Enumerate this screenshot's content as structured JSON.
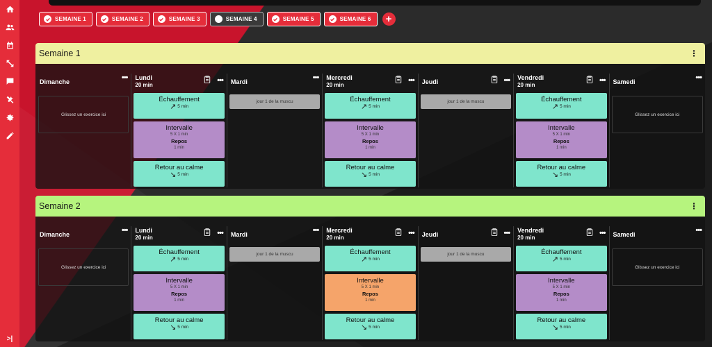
{
  "sidebar": {
    "items": [
      "home-icon",
      "people-icon",
      "calendar-icon",
      "swap-icon",
      "chat-icon",
      "tools-icon",
      "settings-icon",
      "pencil-icon"
    ],
    "collapse_label": ">|"
  },
  "tabs": [
    {
      "label": "SEMAINE 1",
      "active": true
    },
    {
      "label": "SEMAINE 2",
      "active": true
    },
    {
      "label": "SEMAINE 3",
      "active": true
    },
    {
      "label": "SEMAINE 4",
      "active": false
    },
    {
      "label": "SEMAINE 5",
      "active": true
    },
    {
      "label": "SEMAINE 6",
      "active": true
    }
  ],
  "add_button": "+",
  "weeks": [
    {
      "title": "Semaine 1",
      "color": "#eff0a0",
      "days": [
        {
          "name": "Dimanche",
          "type": "empty",
          "drop": "Glissez un exercice ici"
        },
        {
          "name": "Lundi",
          "duration": "20 min",
          "type": "workout",
          "interval_color": "#b48cc8"
        },
        {
          "name": "Mardi",
          "type": "note",
          "note": "jour 1 de la muscu"
        },
        {
          "name": "Mercredi",
          "duration": "20 min",
          "type": "workout",
          "interval_color": "#b48cc8"
        },
        {
          "name": "Jeudi",
          "type": "note-clip",
          "note": "jour 1 de la muscu"
        },
        {
          "name": "Vendredi",
          "duration": "20 min",
          "type": "workout",
          "interval_color": "#b48cc8"
        },
        {
          "name": "Samedi",
          "type": "empty",
          "drop": "Glissez un exercice ici"
        }
      ]
    },
    {
      "title": "Semaine 2",
      "color": "#b6f47e",
      "days": [
        {
          "name": "Dimanche",
          "type": "empty",
          "drop": "Glissez un exercice ici"
        },
        {
          "name": "Lundi",
          "duration": "20 min",
          "type": "workout",
          "interval_color": "#b48cc8"
        },
        {
          "name": "Mardi",
          "type": "note",
          "note": "jour 1 de la muscu"
        },
        {
          "name": "Mercredi",
          "duration": "20 min",
          "type": "workout",
          "interval_color": "#f5a46a"
        },
        {
          "name": "Jeudi",
          "type": "note-clip",
          "note": "jour 1 de la muscu"
        },
        {
          "name": "Vendredi",
          "duration": "20 min",
          "type": "workout",
          "interval_color": "#b48cc8"
        },
        {
          "name": "Samedi",
          "type": "empty",
          "drop": "Glissez un exercice ici"
        }
      ]
    }
  ],
  "workout": {
    "warmup_title": "Échauffement",
    "warmup_time": "5 min",
    "interval_title": "Intervalle",
    "interval_reps": "5 X 1 min",
    "rest_title": "Repos",
    "rest_time": "1 min",
    "cooldown_title": "Retour au calme",
    "cooldown_time": "5 min"
  }
}
